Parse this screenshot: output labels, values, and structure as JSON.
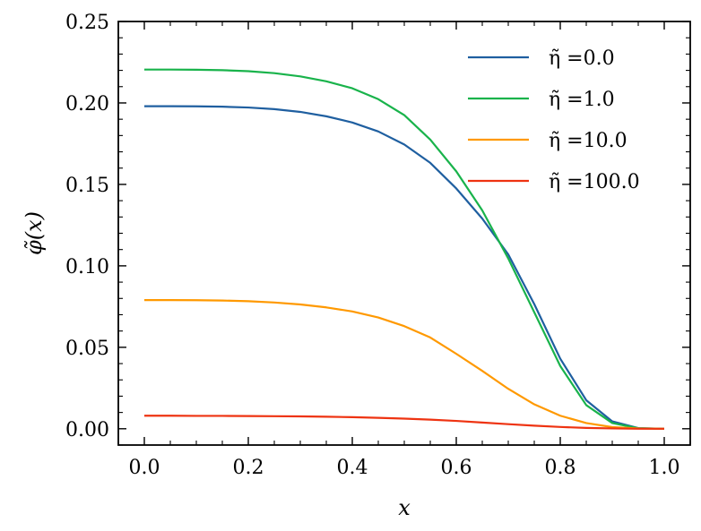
{
  "chart_data": {
    "type": "line",
    "xlabel": "x",
    "ylabel": "φ̃(x)",
    "xlim": [
      -0.05,
      1.05
    ],
    "ylim": [
      -0.01,
      0.25
    ],
    "xticks": [
      "0.0",
      "0.2",
      "0.4",
      "0.6",
      "0.8",
      "1.0"
    ],
    "xtick_values": [
      0.0,
      0.2,
      0.4,
      0.6,
      0.8,
      1.0
    ],
    "yticks": [
      "0.00",
      "0.05",
      "0.10",
      "0.15",
      "0.20",
      "0.25"
    ],
    "ytick_values": [
      0.0,
      0.05,
      0.1,
      0.15,
      0.2,
      0.25
    ],
    "legend_position": "top-right",
    "grid": false,
    "x": [
      0.0,
      0.05,
      0.1,
      0.15,
      0.2,
      0.25,
      0.3,
      0.35,
      0.4,
      0.45,
      0.5,
      0.55,
      0.6,
      0.65,
      0.7,
      0.75,
      0.8,
      0.85,
      0.9,
      0.95,
      1.0
    ],
    "series": [
      {
        "name": "η̃ =0.0",
        "color": "#1f5fa0",
        "values": [
          0.198,
          0.198,
          0.1979,
          0.1977,
          0.1972,
          0.1962,
          0.1945,
          0.1918,
          0.188,
          0.1825,
          0.1745,
          0.1632,
          0.1475,
          0.129,
          0.107,
          0.0765,
          0.043,
          0.0175,
          0.0045,
          0.0004,
          0.0
        ]
      },
      {
        "name": "η̃ =1.0",
        "color": "#19b34b",
        "values": [
          0.2205,
          0.2205,
          0.2204,
          0.2201,
          0.2195,
          0.2183,
          0.2163,
          0.2133,
          0.209,
          0.2023,
          0.1925,
          0.1775,
          0.158,
          0.134,
          0.1045,
          0.0715,
          0.0385,
          0.0145,
          0.0035,
          0.0003,
          0.0
        ]
      },
      {
        "name": "η̃ =10.0",
        "color": "#ff9900",
        "values": [
          0.079,
          0.079,
          0.0789,
          0.0787,
          0.0783,
          0.0775,
          0.0763,
          0.0745,
          0.072,
          0.0683,
          0.063,
          0.056,
          0.046,
          0.0355,
          0.0245,
          0.015,
          0.008,
          0.0035,
          0.001,
          0.0002,
          0.0
        ]
      },
      {
        "name": "η̃ =100.0",
        "color": "#ee3311",
        "values": [
          0.008,
          0.008,
          0.0079,
          0.0079,
          0.0078,
          0.0077,
          0.0076,
          0.0074,
          0.0071,
          0.0067,
          0.0062,
          0.0056,
          0.0048,
          0.0038,
          0.0028,
          0.0019,
          0.0011,
          0.0005,
          0.0002,
          0.0,
          0.0
        ]
      }
    ]
  }
}
